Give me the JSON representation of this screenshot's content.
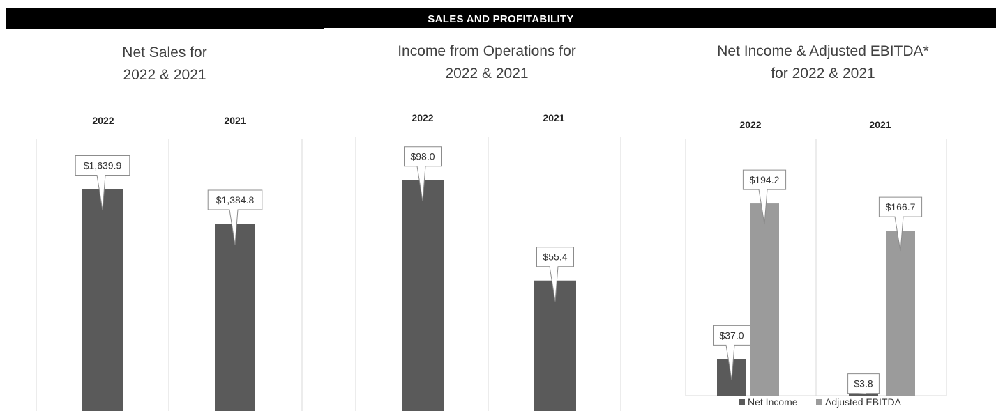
{
  "banner": "SALES AND PROFITABILITY",
  "colors": {
    "dark_bar": "#5a5a5a",
    "light_bar": "#9b9b9b",
    "gridline": "#d9d9d9",
    "callout_border": "#8c8c8c"
  },
  "chart_data": [
    {
      "type": "bar",
      "title_lines": [
        "Net Sales for",
        "2022 & 2021"
      ],
      "categories": [
        "2022",
        "2021"
      ],
      "series": [
        {
          "values": [
            1639.9,
            1384.8
          ],
          "labels": [
            "$1,639.9",
            "$1,384.8"
          ]
        }
      ],
      "ylim": [
        0,
        1900
      ],
      "grid": true
    },
    {
      "type": "bar",
      "title_lines": [
        "Income from Operations for",
        "2022 & 2021"
      ],
      "categories": [
        "2022",
        "2021"
      ],
      "series": [
        {
          "values": [
            98.0,
            55.4
          ],
          "labels": [
            "$98.0",
            "$55.4"
          ]
        }
      ],
      "ylim": [
        0,
        113
      ],
      "grid": true
    },
    {
      "type": "bar",
      "title_lines": [
        "Net Income & Adjusted EBITDA*",
        "for 2022 & 2021"
      ],
      "categories": [
        "2022",
        "2021"
      ],
      "series": [
        {
          "name": "Net Income",
          "values": [
            37.0,
            3.8
          ],
          "labels": [
            "$37.0",
            "$3.8"
          ]
        },
        {
          "name": "Adjusted EBITDA",
          "values": [
            194.2,
            166.7
          ],
          "labels": [
            "$194.2",
            "$166.7"
          ]
        }
      ],
      "ylim": [
        0,
        240
      ],
      "grid": true,
      "legend": "bottom"
    }
  ]
}
